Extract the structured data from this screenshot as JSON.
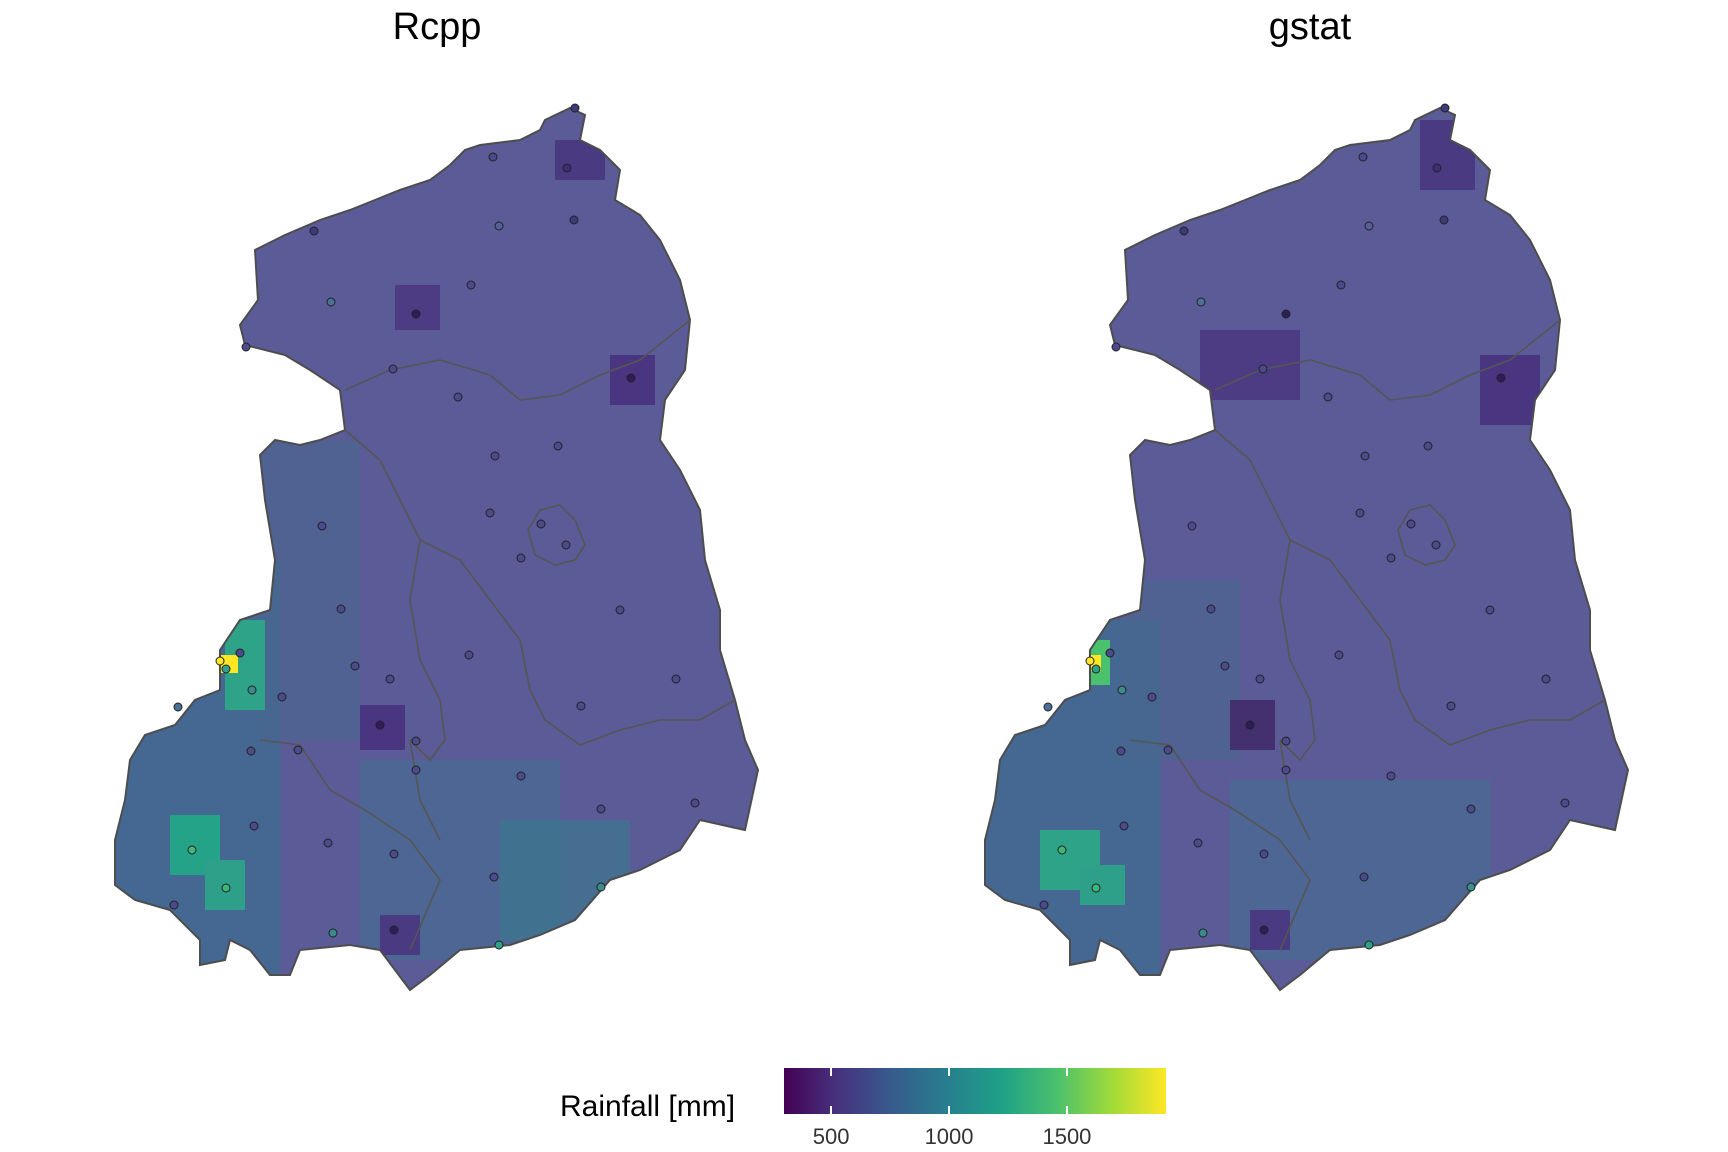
{
  "panels": [
    {
      "title": "Rcpp"
    },
    {
      "title": "gstat"
    }
  ],
  "legend": {
    "title": "Rainfall [mm]",
    "min": 300,
    "max": 1920,
    "ticks": [
      {
        "value": 500,
        "label": "500"
      },
      {
        "value": 1000,
        "label": "1000"
      },
      {
        "value": 1500,
        "label": "1500"
      }
    ],
    "colormap": "viridis"
  },
  "colors": {
    "base_fill": "#5a5d96",
    "region_outline": "#555555",
    "background_land": "#e6e6e6"
  }
}
